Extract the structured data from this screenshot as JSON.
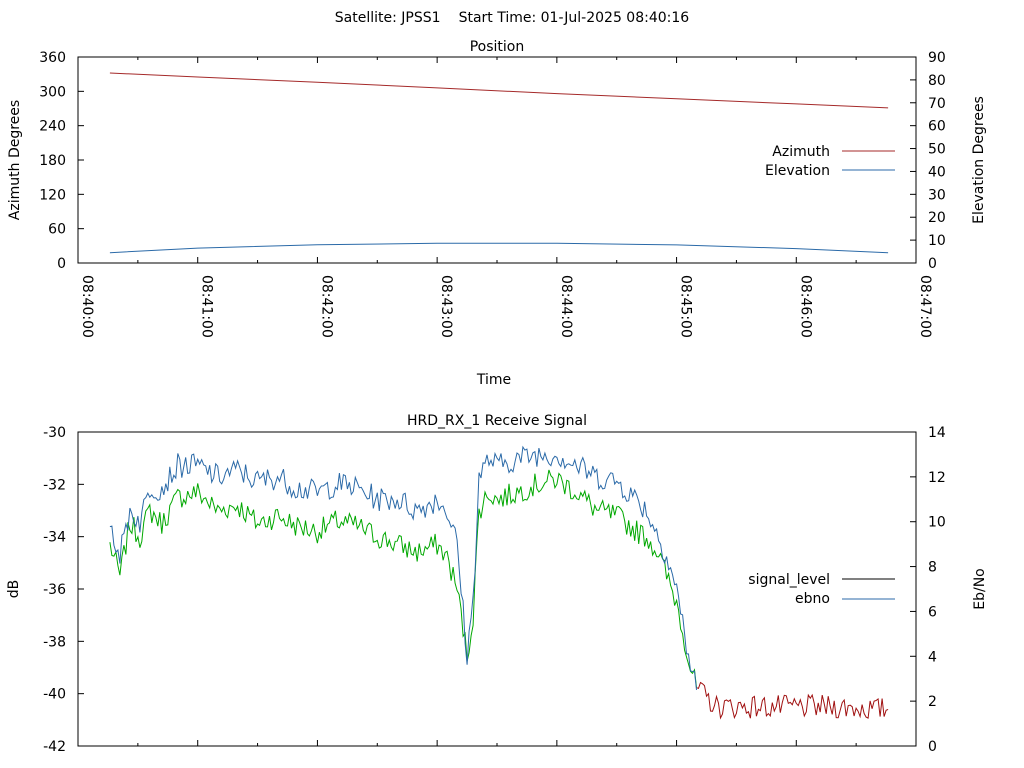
{
  "header": {
    "satellite": "Satellite: JPSS1",
    "start_time": "Start Time: 01-Jul-2025 08:40:16"
  },
  "colors": {
    "azimuth": "#a52a2a",
    "elevation": "#2b6aa8",
    "signal_above_noise": "#00a800",
    "signal_noise_floor": "#a01010",
    "ebno": "#2b6aa8",
    "signal_level_legend": "#000000"
  },
  "chart_data": [
    {
      "type": "line",
      "title": "Position",
      "xlabel": "Time",
      "ylabel": "Azimuth Degrees",
      "y2label": "Elevation Degrees",
      "xlim": [
        "08:40:00",
        "08:47:00"
      ],
      "ylim": [
        0,
        360
      ],
      "y2lim": [
        0,
        90
      ],
      "xticks": [
        "08:40:00",
        "08:41:00",
        "08:42:00",
        "08:43:00",
        "08:44:00",
        "08:45:00",
        "08:46:00",
        "08:47:00"
      ],
      "yticks": [
        "0",
        "60",
        "120",
        "180",
        "240",
        "300",
        "360"
      ],
      "y2ticks": [
        "0",
        "10",
        "20",
        "30",
        "40",
        "50",
        "60",
        "70",
        "80",
        "90"
      ],
      "grid": false,
      "legend_position": "right",
      "series": [
        {
          "name": "Azimuth",
          "axis": "y1",
          "x": [
            "08:40:16",
            "08:41:00",
            "08:42:00",
            "08:43:00",
            "08:44:00",
            "08:45:00",
            "08:46:00",
            "08:46:46"
          ],
          "values": [
            332,
            325,
            316,
            306,
            296,
            287,
            278,
            271
          ]
        },
        {
          "name": "Elevation",
          "axis": "y2",
          "x": [
            "08:40:16",
            "08:41:00",
            "08:42:00",
            "08:43:00",
            "08:44:00",
            "08:45:00",
            "08:46:00",
            "08:46:46"
          ],
          "values": [
            4.5,
            6.5,
            8.0,
            8.6,
            8.6,
            7.9,
            6.3,
            4.5
          ]
        }
      ]
    },
    {
      "type": "line",
      "title": "HRD_RX_1 Receive Signal",
      "xlabel": "",
      "ylabel": "dB",
      "y2label": "Eb/No",
      "xlim": [
        "08:40:00",
        "08:47:00"
      ],
      "ylim": [
        -42,
        -30
      ],
      "y2lim": [
        0,
        14
      ],
      "yticks": [
        "-30",
        "-32",
        "-34",
        "-36",
        "-38",
        "-40",
        "-42"
      ],
      "y2ticks": [
        "0",
        "2",
        "4",
        "6",
        "8",
        "10",
        "12",
        "14"
      ],
      "grid": false,
      "legend_position": "right",
      "series": [
        {
          "name": "signal_level",
          "axis": "y1",
          "x": [
            "08:40:16",
            "08:40:21",
            "08:40:26",
            "08:40:31",
            "08:40:36",
            "08:40:42",
            "08:40:50",
            "08:41:00",
            "08:41:10",
            "08:41:20",
            "08:41:30",
            "08:41:40",
            "08:41:50",
            "08:42:00",
            "08:42:10",
            "08:42:20",
            "08:42:30",
            "08:42:40",
            "08:42:50",
            "08:43:00",
            "08:43:05",
            "08:43:10",
            "08:43:13",
            "08:43:15",
            "08:43:18",
            "08:43:21",
            "08:43:26",
            "08:43:30",
            "08:43:40",
            "08:43:50",
            "08:44:00",
            "08:44:10",
            "08:44:20",
            "08:44:30",
            "08:44:40",
            "08:44:45",
            "08:44:50",
            "08:44:55",
            "08:45:00",
            "08:45:03",
            "08:45:06",
            "08:45:10",
            "08:45:20",
            "08:45:40",
            "08:46:00",
            "08:46:20",
            "08:46:40",
            "08:46:46"
          ],
          "values": [
            -34.3,
            -35.5,
            -33.5,
            -34.0,
            -33.0,
            -33.5,
            -32.5,
            -32.3,
            -33.0,
            -32.8,
            -33.5,
            -33.2,
            -33.6,
            -33.8,
            -33.4,
            -33.6,
            -34.0,
            -34.3,
            -34.6,
            -34.3,
            -34.8,
            -36.0,
            -37.5,
            -38.6,
            -37.0,
            -33.0,
            -32.3,
            -32.6,
            -32.3,
            -32.0,
            -31.8,
            -32.3,
            -33.0,
            -33.2,
            -33.8,
            -34.0,
            -34.5,
            -35.5,
            -36.5,
            -37.5,
            -38.7,
            -39.8,
            -40.5,
            -40.5,
            -40.5,
            -40.5,
            -40.6,
            -40.6
          ]
        },
        {
          "name": "ebno",
          "axis": "y2",
          "x": [
            "08:40:16",
            "08:40:21",
            "08:40:26",
            "08:40:31",
            "08:40:36",
            "08:40:42",
            "08:40:50",
            "08:41:00",
            "08:41:10",
            "08:41:20",
            "08:41:30",
            "08:41:40",
            "08:41:50",
            "08:42:00",
            "08:42:10",
            "08:42:20",
            "08:42:30",
            "08:42:40",
            "08:42:50",
            "08:43:00",
            "08:43:05",
            "08:43:10",
            "08:43:13",
            "08:43:15",
            "08:43:18",
            "08:43:21",
            "08:43:26",
            "08:43:30",
            "08:43:40",
            "08:43:50",
            "08:44:00",
            "08:44:10",
            "08:44:20",
            "08:44:30",
            "08:44:40",
            "08:44:45",
            "08:44:50",
            "08:44:55",
            "08:45:00",
            "08:45:03",
            "08:45:06",
            "08:45:10"
          ],
          "values": [
            10.0,
            8.5,
            10.5,
            10.0,
            11.5,
            11.5,
            12.5,
            12.5,
            12.0,
            12.3,
            11.8,
            12.0,
            11.5,
            11.3,
            11.7,
            11.5,
            11.0,
            11.0,
            10.5,
            11.0,
            10.5,
            9.0,
            6.0,
            4.0,
            6.5,
            12.0,
            12.8,
            12.5,
            12.8,
            13.0,
            13.0,
            12.5,
            12.0,
            11.8,
            11.0,
            10.5,
            9.5,
            8.5,
            7.0,
            5.5,
            4.0,
            2.5
          ]
        }
      ]
    }
  ]
}
